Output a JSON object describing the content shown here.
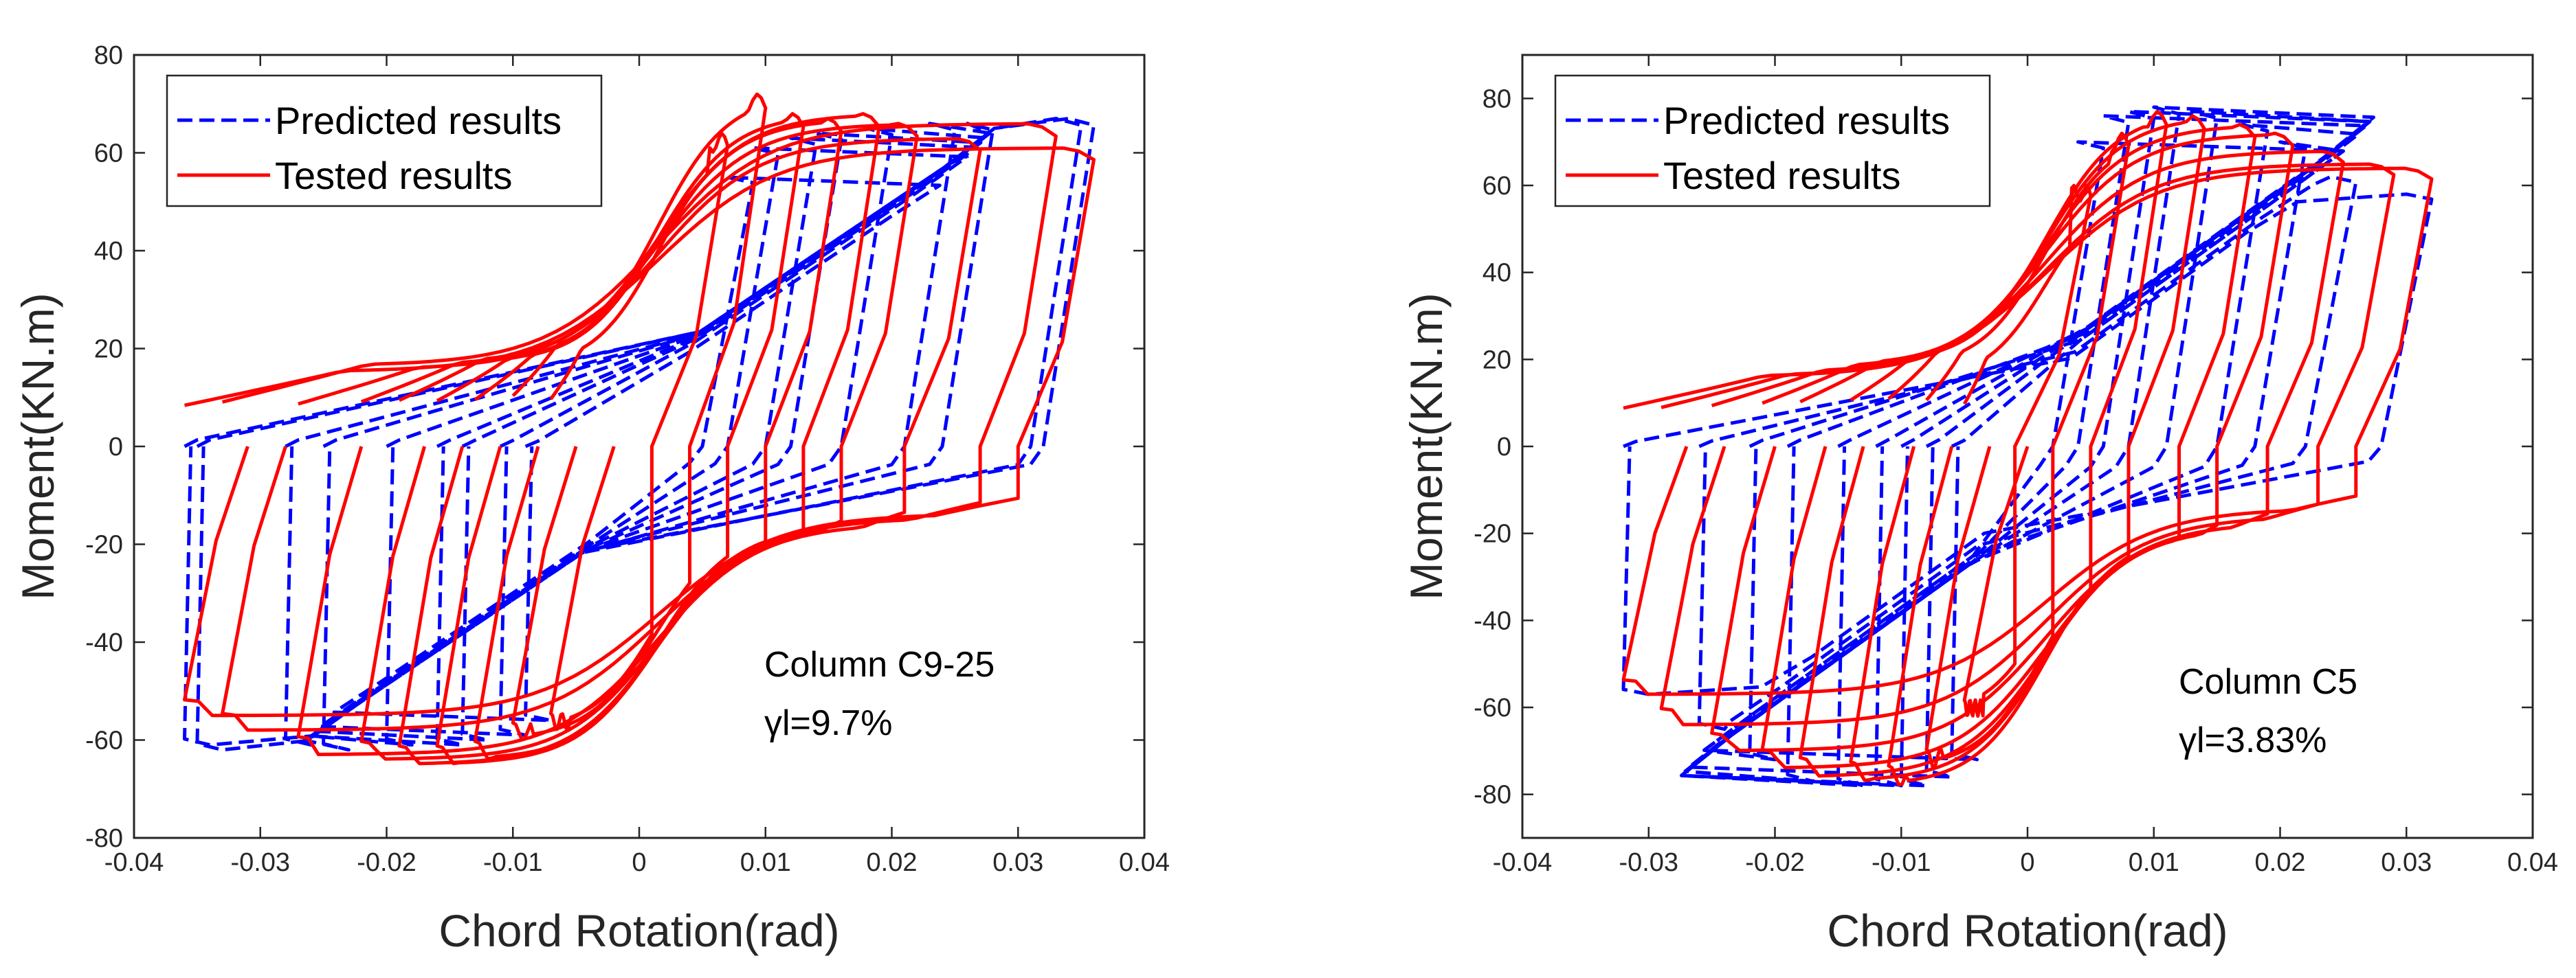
{
  "chart_data": [
    {
      "type": "line",
      "xlabel": "Chord Rotation(rad)",
      "ylabel": "Moment(KN.m)",
      "xlim": [
        -0.04,
        0.04
      ],
      "ylim": [
        -80,
        80
      ],
      "xticks": [
        -0.04,
        -0.03,
        -0.02,
        -0.01,
        0,
        0.01,
        0.02,
        0.03,
        0.04
      ],
      "xtick_labels": [
        "-0.04",
        "-0.03",
        "-0.02",
        "-0.01",
        "0",
        "0.01",
        "0.02",
        "0.03",
        "0.04"
      ],
      "yticks": [
        -80,
        -60,
        -40,
        -20,
        0,
        20,
        40,
        60,
        80
      ],
      "ytick_labels": [
        "-80",
        "-60",
        "-40",
        "-20",
        "0",
        "20",
        "40",
        "60",
        "80"
      ],
      "grid": false,
      "legend_position": "top-left",
      "annotation": [
        "Column C9-25",
        "γl=9.7%"
      ],
      "series": [
        {
          "name": "Predicted results",
          "color": "#0000ff",
          "style": "dashed",
          "loops": [
            {
              "amp": 0.009,
              "Mp": 55,
              "Mn": -56,
              "k": 2500
            },
            {
              "amp": 0.011,
              "Mp": 61,
              "Mn": -59,
              "k": 2500
            },
            {
              "amp": 0.014,
              "Mp": 63,
              "Mn": -60,
              "k": 2500
            },
            {
              "amp": 0.016,
              "Mp": 64,
              "Mn": -61,
              "k": 2500
            },
            {
              "amp": 0.02,
              "Mp": 65,
              "Mn": -61,
              "k": 2500
            },
            {
              "amp": 0.025,
              "Mp": 66,
              "Mn": -62,
              "k": 2500
            },
            {
              "amp": 0.028,
              "Mp": 66,
              "Mn": -61,
              "k": 2500
            },
            {
              "amp": 0.035,
              "Mp": 67,
              "Mn": -62,
              "k": 2500
            },
            {
              "amp": 0.036,
              "Mp": 67,
              "Mn": -61,
              "k": 2500
            }
          ]
        },
        {
          "name": "Tested results",
          "color": "#ff0000",
          "style": "solid",
          "loops": [
            {
              "amp": 0.007,
              "Mp": 64,
              "Mn": -58,
              "k": 3300
            },
            {
              "amp": 0.01,
              "Mp": 72,
              "Mn": -60,
              "k": 3300
            },
            {
              "amp": 0.013,
              "Mp": 68,
              "Mn": -64,
              "k": 3300
            },
            {
              "amp": 0.016,
              "Mp": 67,
              "Mn": -65,
              "k": 3300
            },
            {
              "amp": 0.019,
              "Mp": 68,
              "Mn": -65,
              "k": 3300
            },
            {
              "amp": 0.022,
              "Mp": 66,
              "Mn": -64,
              "k": 3300
            },
            {
              "amp": 0.027,
              "Mp": 63,
              "Mn": -63,
              "k": 3300
            },
            {
              "amp": 0.033,
              "Mp": 66,
              "Mn": -58,
              "k": 3300
            },
            {
              "amp": 0.036,
              "Mp": 61,
              "Mn": -55,
              "k": 3300
            }
          ]
        }
      ]
    },
    {
      "type": "line",
      "xlabel": "Chord Rotation(rad)",
      "ylabel": "Moment(KN.m)",
      "xlim": [
        -0.04,
        0.04
      ],
      "ylim": [
        -90,
        90
      ],
      "xticks": [
        -0.04,
        -0.03,
        -0.02,
        -0.01,
        0,
        0.01,
        0.02,
        0.03,
        0.04
      ],
      "xtick_labels": [
        "-0.04",
        "-0.03",
        "-0.02",
        "-0.01",
        "0",
        "0.01",
        "0.02",
        "0.03",
        "0.04"
      ],
      "yticks": [
        -80,
        -60,
        -40,
        -20,
        0,
        20,
        40,
        60,
        80
      ],
      "ytick_labels": [
        "-80",
        "-60",
        "-40",
        "-20",
        "0",
        "20",
        "40",
        "60",
        "80"
      ],
      "grid": false,
      "legend_position": "top-left",
      "annotation": [
        "Column C5",
        "γl=3.83%"
      ],
      "series": [
        {
          "name": "Predicted results",
          "color": "#0000ff",
          "style": "dashed",
          "loops": [
            {
              "amp": 0.006,
              "Mp": 70,
              "Mn": -72,
              "k": 3000
            },
            {
              "amp": 0.008,
              "Mp": 76,
              "Mn": -76,
              "k": 3000
            },
            {
              "amp": 0.01,
              "Mp": 77,
              "Mn": -78,
              "k": 3000
            },
            {
              "amp": 0.012,
              "Mp": 78,
              "Mn": -78,
              "k": 3000
            },
            {
              "amp": 0.015,
              "Mp": 77,
              "Mn": -78,
              "k": 3000
            },
            {
              "amp": 0.019,
              "Mp": 74,
              "Mn": -77,
              "k": 3000
            },
            {
              "amp": 0.022,
              "Mp": 70,
              "Mn": -72,
              "k": 3000
            },
            {
              "amp": 0.026,
              "Mp": 62,
              "Mn": -65,
              "k": 3000
            },
            {
              "amp": 0.032,
              "Mp": 58,
              "Mn": -57,
              "k": 3000
            }
          ]
        },
        {
          "name": "Tested results",
          "color": "#ff0000",
          "style": "solid",
          "loops": [
            {
              "amp": 0.005,
              "Mp": 60,
              "Mn": -62,
              "k": 3500
            },
            {
              "amp": 0.008,
              "Mp": 72,
              "Mn": -74,
              "k": 3500
            },
            {
              "amp": 0.011,
              "Mp": 77,
              "Mn": -78,
              "k": 3500
            },
            {
              "amp": 0.014,
              "Mp": 76,
              "Mn": -77,
              "k": 3500
            },
            {
              "amp": 0.018,
              "Mp": 74,
              "Mn": -76,
              "k": 3500
            },
            {
              "amp": 0.021,
              "Mp": 72,
              "Mn": -74,
              "k": 3500
            },
            {
              "amp": 0.025,
              "Mp": 68,
              "Mn": -70,
              "k": 3500
            },
            {
              "amp": 0.029,
              "Mp": 65,
              "Mn": -64,
              "k": 3500
            },
            {
              "amp": 0.032,
              "Mp": 64,
              "Mn": -57,
              "k": 3500
            }
          ]
        }
      ]
    }
  ]
}
